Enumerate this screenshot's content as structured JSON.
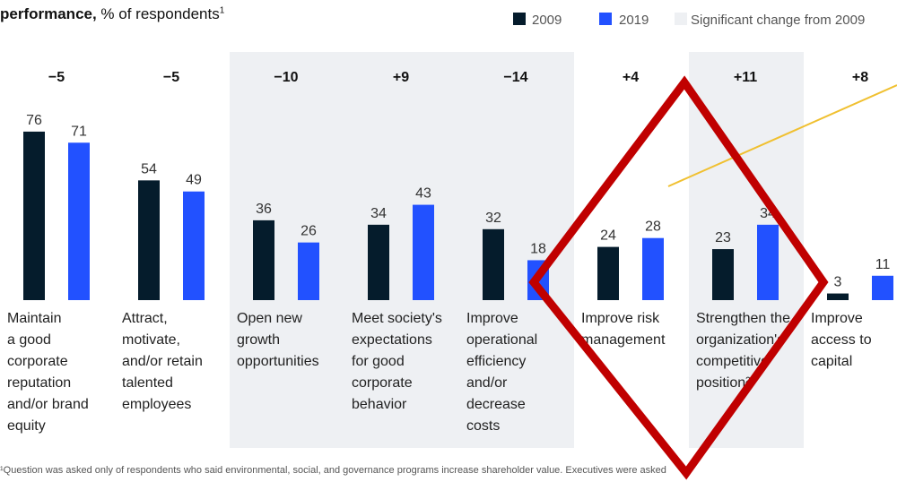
{
  "chart_data": {
    "type": "bar",
    "title": {
      "bold": "performance,",
      "rest": " % of respondents",
      "footnote_ref": "1"
    },
    "legend": {
      "significant_label": "Significant change from 2009",
      "significant_color": "#eef0f3"
    },
    "categories": [
      "Maintain\na good\ncorporate\nreputation\nand/or brand\nequity",
      "Attract,\nmotivate,\nand/or retain\ntalented\nemployees",
      "Open new\ngrowth\nopportunities",
      "Meet society's\nexpectations\nfor good\ncorporate\nbehavior",
      "Improve\noperational\nefficiency\nand/or\ndecrease\ncosts",
      "Improve risk\nmanagement",
      "Strengthen the\norganization's\ncompetitive\nposition²",
      "Improve\naccess to\ncapital"
    ],
    "changes": [
      "−5",
      "−5",
      "−10",
      "+9",
      "−14",
      "+4",
      "+11",
      "+8"
    ],
    "significant": [
      false,
      false,
      true,
      true,
      true,
      false,
      true,
      false
    ],
    "series": [
      {
        "name": "2009",
        "color": "#051c2c",
        "values": [
          76,
          54,
          36,
          34,
          32,
          24,
          23,
          3
        ]
      },
      {
        "name": "2019",
        "color": "#2251ff",
        "values": [
          71,
          49,
          26,
          43,
          18,
          28,
          34,
          11
        ]
      }
    ],
    "ylim": [
      0,
      80
    ],
    "footnote": "¹Question was asked only of respondents who said environmental, social, and governance programs increase shareholder value. Executives were asked"
  }
}
